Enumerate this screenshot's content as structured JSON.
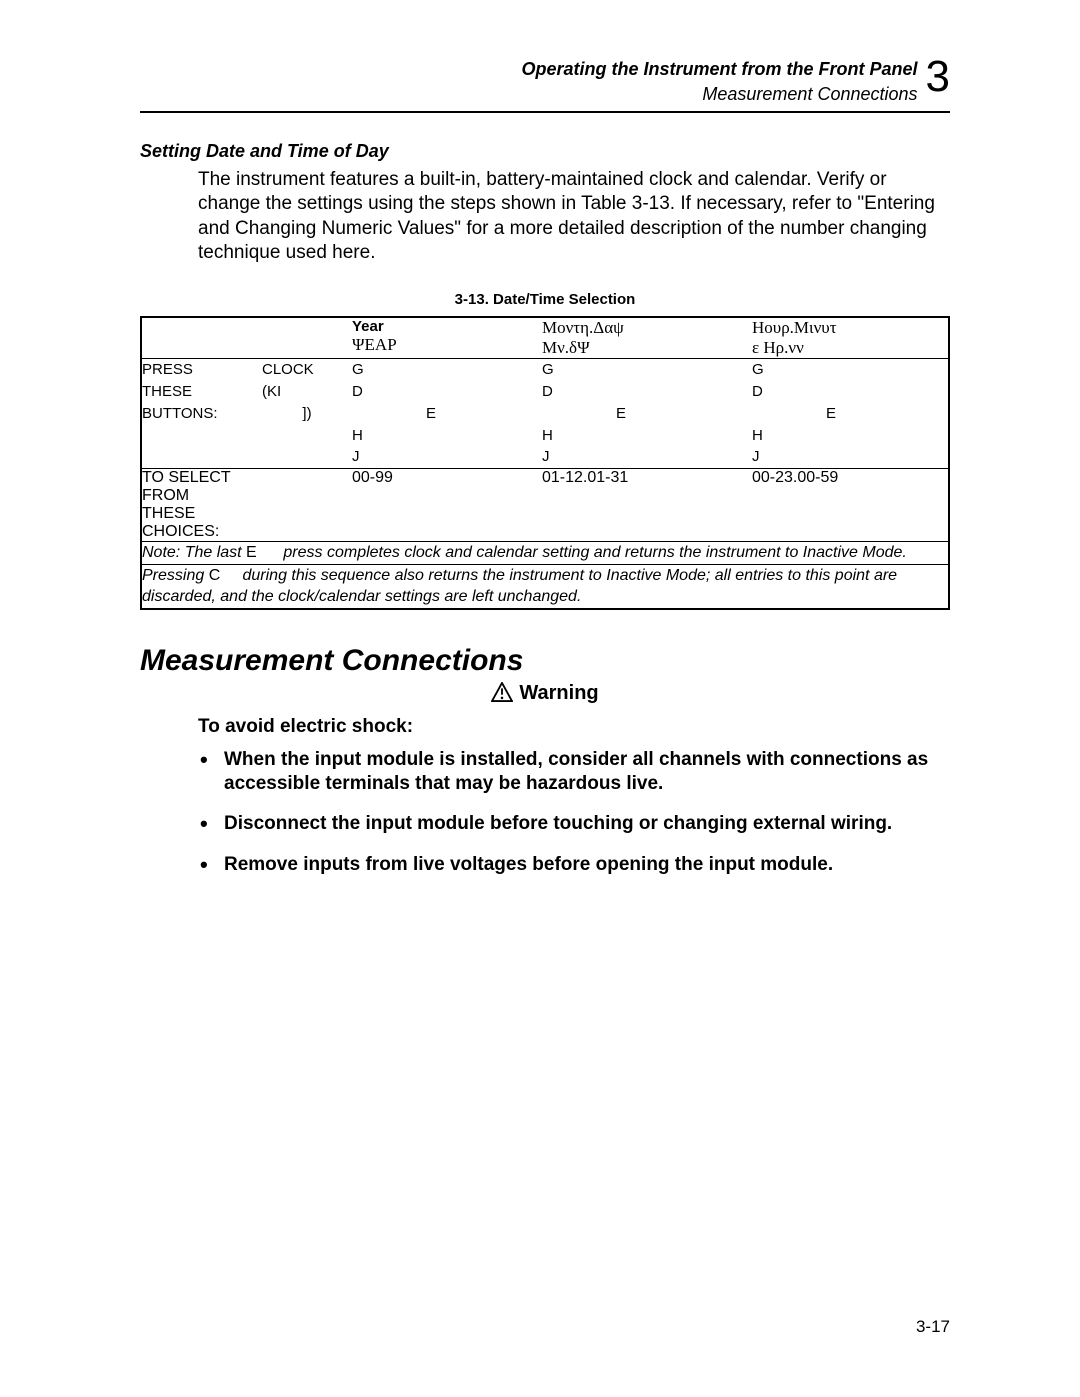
{
  "header": {
    "line1": "Operating the Instrument from the Front Panel",
    "line2": "Measurement Connections",
    "chapter": "3"
  },
  "section1": {
    "heading": "Setting Date and Time of Day",
    "paragraph": "The instrument features a built-in, battery-maintained clock and calendar. Verify or change the settings using the steps shown in Table 3-13. If necessary, refer to \"Entering and Changing Numeric Values\" for a more detailed description of the number changing technique used here."
  },
  "table": {
    "caption": "3-13. Date/Time Selection",
    "cols": [
      {
        "top": "Year",
        "sub": "ΨEAP"
      },
      {
        "top": "Μοντη.Δαψ",
        "sub": "Μν.δΨ"
      },
      {
        "top": "Ηουρ.Μινυτ",
        "sub": "ε  Ηρ.νν"
      }
    ],
    "press_label_lines": [
      "PRESS",
      "THESE",
      "BUTTONS:"
    ],
    "press_right_lines": [
      "CLOCK",
      "(KI",
      "])"
    ],
    "key_rows": [
      [
        "G",
        "G",
        "G"
      ],
      [
        "D",
        "D",
        "D"
      ],
      [
        "E",
        "E",
        "E"
      ],
      [
        "H",
        "H",
        "H"
      ],
      [
        "J",
        "J",
        "J"
      ]
    ],
    "key_offsets": [
      "0",
      "0",
      "74",
      "0",
      "0"
    ],
    "choice_label_lines": [
      "TO SELECT",
      "FROM",
      "THESE",
      "CHOICES:"
    ],
    "choices": [
      "00-99",
      "01-12.01-31",
      "00-23.00-59"
    ],
    "note1_pre": "Note: The last ",
    "note1_key": "E",
    "note1_post": " press completes clock and calendar setting and returns the instrument to Inactive Mode.",
    "note2_pre": "Pressing ",
    "note2_key": "C",
    "note2_post": " during this sequence also returns the instrument to Inactive Mode; all entries to this point are discarded, and the clock/calendar settings are left unchanged."
  },
  "section2": {
    "title": "Measurement Connections",
    "warning_label": "Warning",
    "lead": "To avoid electric shock:",
    "bullets": [
      "When the input module is installed, consider all channels with connections as accessible terminals that may be hazardous live.",
      "Disconnect the input module before touching or changing external wiring.",
      "Remove inputs from live voltages before opening the input module."
    ]
  },
  "footer": {
    "page": "3-17"
  },
  "style": {
    "rule_color": "#000000",
    "background": "#ffffff"
  }
}
